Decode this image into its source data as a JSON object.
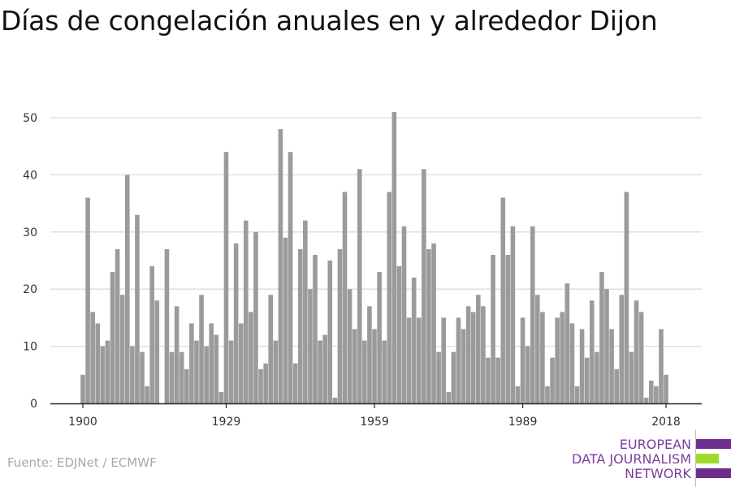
{
  "colors": {
    "bar": "#9b9b9b",
    "grid": "#dcdcdc",
    "axis": "#222222",
    "brand_purple": "#6e2e8e",
    "brand_green": "#9fdc2a"
  },
  "chart_data": {
    "type": "bar",
    "title": "Días de congelación anuales en y alrededor Dijon",
    "xlabel": "",
    "ylabel": "",
    "x_tick_labels": [
      "1900",
      "1929",
      "1959",
      "1989",
      "2018"
    ],
    "y_ticks": [
      0,
      10,
      20,
      30,
      40,
      50
    ],
    "ylim": [
      0,
      55
    ],
    "grid": true,
    "x": [
      1900,
      1901,
      1902,
      1903,
      1904,
      1905,
      1906,
      1907,
      1908,
      1909,
      1910,
      1911,
      1912,
      1913,
      1914,
      1915,
      1916,
      1917,
      1918,
      1919,
      1920,
      1921,
      1922,
      1923,
      1924,
      1925,
      1926,
      1927,
      1928,
      1929,
      1930,
      1931,
      1932,
      1933,
      1934,
      1935,
      1936,
      1937,
      1938,
      1939,
      1940,
      1941,
      1942,
      1943,
      1944,
      1945,
      1946,
      1947,
      1948,
      1949,
      1950,
      1951,
      1952,
      1953,
      1954,
      1955,
      1956,
      1957,
      1958,
      1959,
      1960,
      1961,
      1962,
      1963,
      1964,
      1965,
      1966,
      1967,
      1968,
      1969,
      1970,
      1971,
      1972,
      1973,
      1974,
      1975,
      1976,
      1977,
      1978,
      1979,
      1980,
      1981,
      1982,
      1983,
      1984,
      1985,
      1986,
      1987,
      1988,
      1989,
      1990,
      1991,
      1992,
      1993,
      1994,
      1995,
      1996,
      1997,
      1998,
      1999,
      2000,
      2001,
      2002,
      2003,
      2004,
      2005,
      2006,
      2007,
      2008,
      2009,
      2010,
      2011,
      2012,
      2013,
      2014,
      2015,
      2016,
      2017,
      2018
    ],
    "values": [
      5,
      36,
      16,
      14,
      10,
      11,
      23,
      27,
      19,
      40,
      10,
      33,
      9,
      3,
      24,
      18,
      0,
      27,
      9,
      17,
      9,
      6,
      14,
      11,
      19,
      10,
      14,
      12,
      2,
      44,
      11,
      28,
      14,
      32,
      16,
      30,
      6,
      7,
      19,
      11,
      48,
      29,
      44,
      7,
      27,
      32,
      20,
      26,
      11,
      12,
      25,
      1,
      27,
      37,
      20,
      13,
      41,
      11,
      17,
      13,
      23,
      11,
      37,
      51,
      24,
      31,
      15,
      22,
      15,
      41,
      27,
      28,
      9,
      15,
      2,
      9,
      15,
      13,
      17,
      16,
      19,
      17,
      8,
      26,
      8,
      36,
      26,
      31,
      3,
      15,
      10,
      31,
      19,
      16,
      3,
      8,
      15,
      16,
      21,
      14,
      3,
      13,
      8,
      18,
      9,
      23,
      20,
      13,
      6,
      19,
      37,
      9,
      18,
      16,
      1,
      4,
      3,
      13,
      5
    ]
  },
  "source": "Fuente: EDJNet / ECMWF",
  "logo": {
    "line1": "EUROPEAN",
    "line2": "DATA JOURNALISM",
    "line3": "NETWORK"
  }
}
